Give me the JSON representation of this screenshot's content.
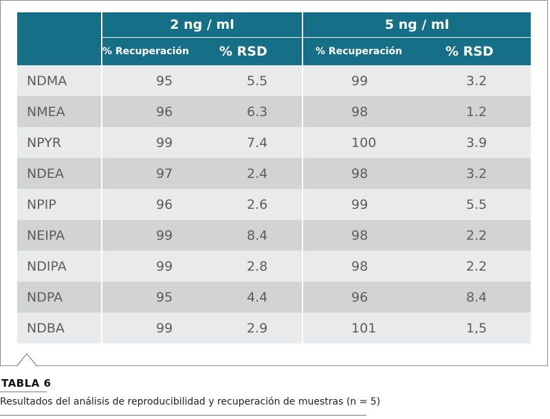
{
  "table": {
    "groups": [
      "2 ng / ml",
      "5 ng / ml"
    ],
    "subheaders": [
      "% Recuperación",
      "% RSD",
      "% Recuperación",
      "% RSD"
    ],
    "rows": [
      {
        "name": "NDMA",
        "rec2": "95",
        "rsd2": "5.5",
        "rec5": "99",
        "rsd5": "3.2"
      },
      {
        "name": "NMEA",
        "rec2": "96",
        "rsd2": "6.3",
        "rec5": "98",
        "rsd5": "1.2"
      },
      {
        "name": "NPYR",
        "rec2": "99",
        "rsd2": "7.4",
        "rec5": "100",
        "rsd5": "3.9"
      },
      {
        "name": "NDEA",
        "rec2": "97",
        "rsd2": "2.4",
        "rec5": "98",
        "rsd5": "3.2"
      },
      {
        "name": "NPIP",
        "rec2": "96",
        "rsd2": "2.6",
        "rec5": "99",
        "rsd5": "5.5"
      },
      {
        "name": "NEIPA",
        "rec2": "99",
        "rsd2": "8.4",
        "rec5": "98",
        "rsd5": "2.2"
      },
      {
        "name": "NDIPA",
        "rec2": "99",
        "rsd2": "2.8",
        "rec5": "98",
        "rsd5": "2.2"
      },
      {
        "name": "NDPA",
        "rec2": "95",
        "rsd2": "4.4",
        "rec5": "96",
        "rsd5": "8.4"
      },
      {
        "name": "NDBA",
        "rec2": "99",
        "rsd2": "2.9",
        "rec5": "101",
        "rsd5": "1,5"
      }
    ]
  },
  "caption": {
    "label": "TABLA 6",
    "text": "Resultados del análisis de reproducibilidad y recuperación de muestras (n = 5)"
  },
  "colors": {
    "header": "#156f86",
    "row_light": "#e9eaeb",
    "row_dark": "#d2d3d5",
    "text": "#5c5c5c"
  }
}
